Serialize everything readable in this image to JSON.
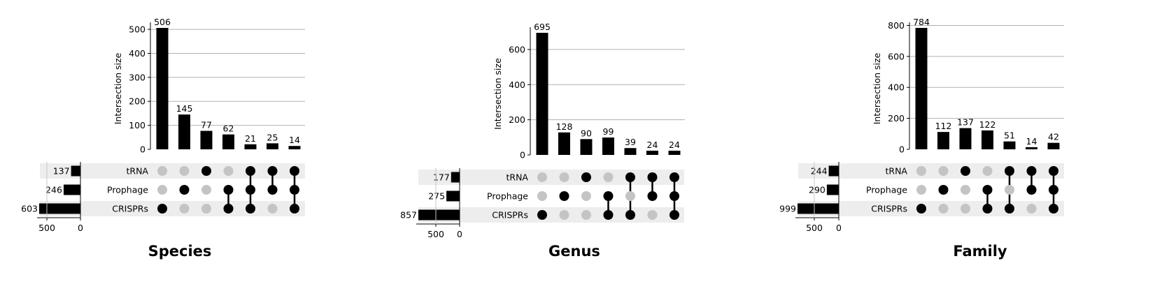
{
  "chart_data": [
    {
      "type": "upset",
      "title": "Species",
      "ylabel": "Intersection size",
      "ylim": [
        0,
        506
      ],
      "yticks": [
        0,
        100,
        200,
        300,
        400,
        500
      ],
      "sets": [
        "tRNA",
        "Prophage",
        "CRISPRs"
      ],
      "set_sizes": [
        137,
        246,
        603
      ],
      "set_size_ticks": [
        500,
        0
      ],
      "intersections": [
        {
          "members": [
            "CRISPRs"
          ],
          "size": 506
        },
        {
          "members": [
            "Prophage"
          ],
          "size": 145
        },
        {
          "members": [
            "tRNA"
          ],
          "size": 77
        },
        {
          "members": [
            "Prophage",
            "CRISPRs"
          ],
          "size": 62
        },
        {
          "members": [
            "tRNA",
            "Prophage",
            "CRISPRs"
          ],
          "size": 21
        },
        {
          "members": [
            "tRNA",
            "Prophage"
          ],
          "size": 25
        },
        {
          "members": [
            "tRNA",
            "Prophage",
            "CRISPRs"
          ],
          "size": 14
        }
      ],
      "grid": true
    },
    {
      "type": "upset",
      "title": "Genus",
      "ylabel": "Intersection size",
      "ylim": [
        0,
        695
      ],
      "yticks": [
        0,
        200,
        400,
        600
      ],
      "sets": [
        "tRNA",
        "Prophage",
        "CRISPRs"
      ],
      "set_sizes": [
        177,
        275,
        857
      ],
      "set_size_ticks": [
        500,
        0
      ],
      "intersections": [
        {
          "members": [
            "CRISPRs"
          ],
          "size": 695
        },
        {
          "members": [
            "Prophage"
          ],
          "size": 128
        },
        {
          "members": [
            "tRNA"
          ],
          "size": 90
        },
        {
          "members": [
            "Prophage",
            "CRISPRs"
          ],
          "size": 99
        },
        {
          "members": [
            "tRNA",
            "CRISPRs"
          ],
          "size": 39
        },
        {
          "members": [
            "tRNA",
            "Prophage"
          ],
          "size": 24
        },
        {
          "members": [
            "tRNA",
            "Prophage",
            "CRISPRs"
          ],
          "size": 24
        }
      ],
      "grid": true
    },
    {
      "type": "upset",
      "title": "Family",
      "ylabel": "Intersection size",
      "ylim": [
        0,
        784
      ],
      "yticks": [
        0,
        200,
        400,
        600,
        800
      ],
      "sets": [
        "tRNA",
        "Prophage",
        "CRISPRs"
      ],
      "set_sizes": [
        244,
        290,
        999
      ],
      "set_size_ticks": [
        500,
        0
      ],
      "intersections": [
        {
          "members": [
            "CRISPRs"
          ],
          "size": 784
        },
        {
          "members": [
            "Prophage"
          ],
          "size": 112
        },
        {
          "members": [
            "tRNA"
          ],
          "size": 137
        },
        {
          "members": [
            "Prophage",
            "CRISPRs"
          ],
          "size": 122
        },
        {
          "members": [
            "tRNA",
            "CRISPRs"
          ],
          "size": 51
        },
        {
          "members": [
            "tRNA",
            "Prophage"
          ],
          "size": 14
        },
        {
          "members": [
            "tRNA",
            "Prophage",
            "CRISPRs"
          ],
          "size": 42
        }
      ],
      "grid": true
    }
  ]
}
